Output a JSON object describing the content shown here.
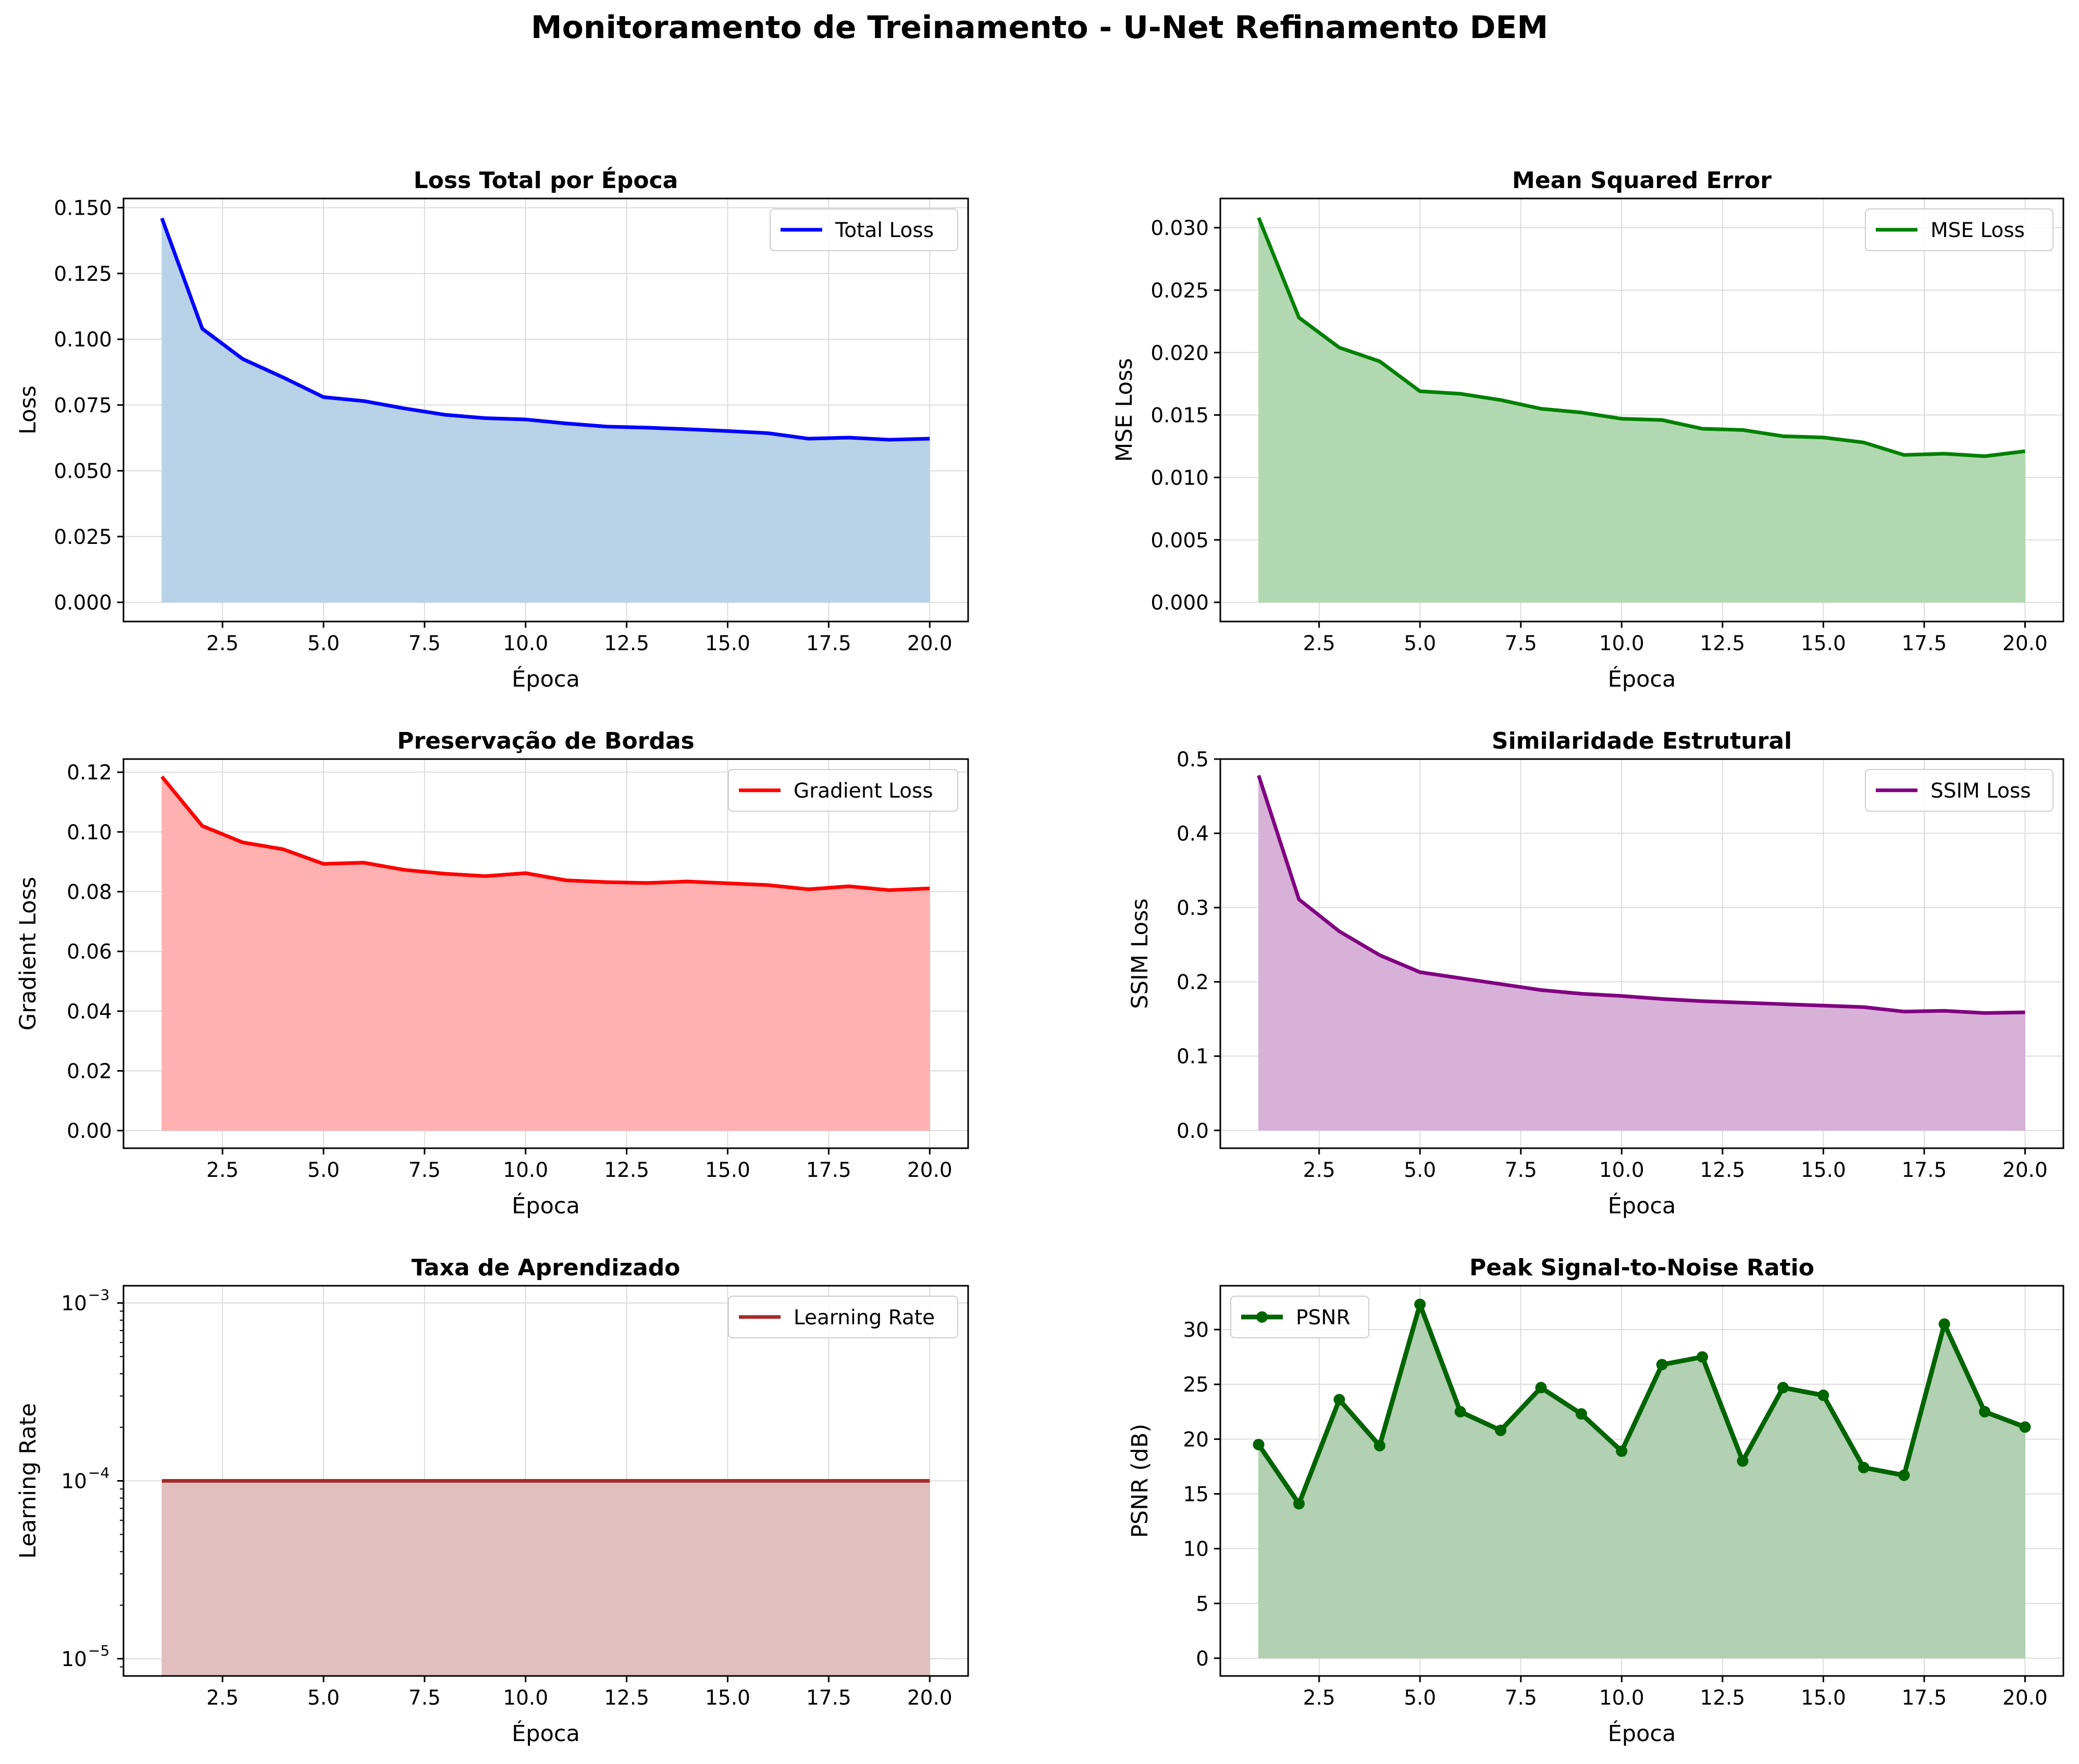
{
  "figure": {
    "suptitle": "Monitoramento de Treinamento - U-Net Refinamento DEM"
  },
  "chart_data": [
    {
      "id": "total",
      "type": "area",
      "title": "Loss Total por Época",
      "xlabel": "Época",
      "ylabel": "Loss",
      "xlim": [
        0.05,
        20.95
      ],
      "ylim": [
        -0.0073,
        0.1535
      ],
      "xticks": [
        2.5,
        5.0,
        7.5,
        10.0,
        12.5,
        15.0,
        17.5,
        20.0
      ],
      "yticks": [
        0.0,
        0.025,
        0.05,
        0.075,
        0.1,
        0.125,
        0.15
      ],
      "ytick_labels": [
        "0.000",
        "0.025",
        "0.050",
        "0.075",
        "0.100",
        "0.125",
        "0.150"
      ],
      "grid": true,
      "legend": "upper right",
      "series": [
        {
          "name": "Total Loss",
          "color": "#0000ff",
          "fill": "#b8d3e7",
          "x": [
            1,
            2,
            3,
            4,
            5,
            6,
            7,
            8,
            9,
            10,
            11,
            12,
            13,
            14,
            15,
            16,
            17,
            18,
            19,
            20
          ],
          "y": [
            0.146,
            0.104,
            0.0925,
            0.0855,
            0.078,
            0.0765,
            0.0737,
            0.0713,
            0.07,
            0.0695,
            0.068,
            0.0668,
            0.0664,
            0.0658,
            0.0651,
            0.0643,
            0.0622,
            0.0626,
            0.0618,
            0.0622
          ]
        }
      ]
    },
    {
      "id": "mse",
      "type": "area",
      "title": "Mean Squared Error",
      "xlabel": "Época",
      "ylabel": "MSE Loss",
      "xlim": [
        0.05,
        20.95
      ],
      "ylim": [
        -0.00154,
        0.03234
      ],
      "xticks": [
        2.5,
        5.0,
        7.5,
        10.0,
        12.5,
        15.0,
        17.5,
        20.0
      ],
      "yticks": [
        0.0,
        0.005,
        0.01,
        0.015,
        0.02,
        0.025,
        0.03
      ],
      "ytick_labels": [
        "0.000",
        "0.005",
        "0.010",
        "0.015",
        "0.020",
        "0.025",
        "0.030"
      ],
      "grid": true,
      "legend": "upper right",
      "series": [
        {
          "name": "MSE Loss",
          "color": "#008000",
          "fill": "#b2d8b2",
          "x": [
            1,
            2,
            3,
            4,
            5,
            6,
            7,
            8,
            9,
            10,
            11,
            12,
            13,
            14,
            15,
            16,
            17,
            18,
            19,
            20
          ],
          "y": [
            0.0308,
            0.0228,
            0.0204,
            0.0193,
            0.0169,
            0.0167,
            0.0162,
            0.0155,
            0.0152,
            0.0147,
            0.0146,
            0.0139,
            0.0138,
            0.0133,
            0.0132,
            0.0128,
            0.0118,
            0.0119,
            0.0117,
            0.0121
          ]
        }
      ]
    },
    {
      "id": "gradient",
      "type": "area",
      "title": "Preservação de Bordas",
      "xlabel": "Época",
      "ylabel": "Gradient Loss",
      "xlim": [
        0.05,
        20.95
      ],
      "ylim": [
        -0.0059,
        0.1244
      ],
      "xticks": [
        2.5,
        5.0,
        7.5,
        10.0,
        12.5,
        15.0,
        17.5,
        20.0
      ],
      "yticks": [
        0.0,
        0.02,
        0.04,
        0.06,
        0.08,
        0.1,
        0.12
      ],
      "ytick_labels": [
        "0.00",
        "0.02",
        "0.04",
        "0.06",
        "0.08",
        "0.10",
        "0.12"
      ],
      "grid": true,
      "legend": "upper right",
      "series": [
        {
          "name": "Gradient Loss",
          "color": "#ff0000",
          "fill": "#ffb1b1",
          "x": [
            1,
            2,
            3,
            4,
            5,
            6,
            7,
            8,
            9,
            10,
            11,
            12,
            13,
            14,
            15,
            16,
            17,
            18,
            19,
            20
          ],
          "y": [
            0.1185,
            0.102,
            0.0965,
            0.0942,
            0.0893,
            0.0897,
            0.0873,
            0.086,
            0.0852,
            0.0862,
            0.0838,
            0.0832,
            0.0829,
            0.0834,
            0.0828,
            0.0822,
            0.0808,
            0.0818,
            0.0805,
            0.0811
          ]
        }
      ]
    },
    {
      "id": "ssim",
      "type": "area",
      "title": "Similaridade Estrutural",
      "xlabel": "Época",
      "ylabel": "SSIM Loss",
      "xlim": [
        0.05,
        20.95
      ],
      "ylim": [
        -0.024,
        0.5
      ],
      "xticks": [
        2.5,
        5.0,
        7.5,
        10.0,
        12.5,
        15.0,
        17.5,
        20.0
      ],
      "yticks": [
        0.0,
        0.1,
        0.2,
        0.3,
        0.4,
        0.5
      ],
      "ytick_labels": [
        "0.0",
        "0.1",
        "0.2",
        "0.3",
        "0.4",
        "0.5"
      ],
      "grid": true,
      "legend": "upper right",
      "series": [
        {
          "name": "SSIM Loss",
          "color": "#800080",
          "fill": "#d7b1d7",
          "x": [
            1,
            2,
            3,
            4,
            5,
            6,
            7,
            8,
            9,
            10,
            11,
            12,
            13,
            14,
            15,
            16,
            17,
            18,
            19,
            20
          ],
          "y": [
            0.478,
            0.311,
            0.268,
            0.236,
            0.213,
            0.205,
            0.197,
            0.189,
            0.184,
            0.181,
            0.177,
            0.174,
            0.172,
            0.17,
            0.168,
            0.166,
            0.16,
            0.161,
            0.158,
            0.159
          ]
        }
      ]
    },
    {
      "id": "lr",
      "type": "area",
      "title": "Taxa de Aprendizado",
      "xlabel": "Época",
      "ylabel": "Learning Rate",
      "yscale": "log",
      "xlim": [
        0.05,
        20.95
      ],
      "ylim": [
        8e-06,
        0.00125
      ],
      "xticks": [
        2.5,
        5.0,
        7.5,
        10.0,
        12.5,
        15.0,
        17.5,
        20.0
      ],
      "yticks": [
        1e-05,
        0.0001,
        0.001
      ],
      "ytick_labels": [
        "10",
        "10",
        "10"
      ],
      "ytick_exponents": [
        "−5",
        "−4",
        "−3"
      ],
      "grid": true,
      "legend": "upper right",
      "series": [
        {
          "name": "Learning Rate",
          "color": "#a52a2a",
          "fill": "#e1bfbf",
          "x": [
            1,
            2,
            3,
            4,
            5,
            6,
            7,
            8,
            9,
            10,
            11,
            12,
            13,
            14,
            15,
            16,
            17,
            18,
            19,
            20
          ],
          "y": [
            0.0001,
            0.0001,
            0.0001,
            0.0001,
            0.0001,
            0.0001,
            0.0001,
            0.0001,
            0.0001,
            0.0001,
            0.0001,
            0.0001,
            0.0001,
            0.0001,
            0.0001,
            0.0001,
            0.0001,
            0.0001,
            0.0001,
            0.0001
          ]
        }
      ]
    },
    {
      "id": "psnr",
      "type": "area",
      "title": "Peak Signal-to-Noise Ratio",
      "xlabel": "Época",
      "ylabel": "PSNR (dB)",
      "xlim": [
        0.05,
        20.95
      ],
      "ylim": [
        -1.62,
        34.0
      ],
      "xticks": [
        2.5,
        5.0,
        7.5,
        10.0,
        12.5,
        15.0,
        17.5,
        20.0
      ],
      "yticks": [
        0,
        5,
        10,
        15,
        20,
        25,
        30
      ],
      "ytick_labels": [
        "0",
        "5",
        "10",
        "15",
        "20",
        "25",
        "30"
      ],
      "grid": true,
      "legend": "upper left",
      "markers": true,
      "series": [
        {
          "name": "PSNR",
          "color": "#006400",
          "fill": "#b2d0b2",
          "x": [
            1,
            2,
            3,
            4,
            5,
            6,
            7,
            8,
            9,
            10,
            11,
            12,
            13,
            14,
            15,
            16,
            17,
            18,
            19,
            20
          ],
          "y": [
            19.5,
            14.1,
            23.6,
            19.4,
            32.3,
            22.5,
            20.8,
            24.7,
            22.3,
            18.9,
            26.8,
            27.5,
            18.0,
            24.7,
            24.0,
            17.4,
            16.7,
            30.5,
            22.5,
            21.1
          ]
        }
      ]
    }
  ]
}
